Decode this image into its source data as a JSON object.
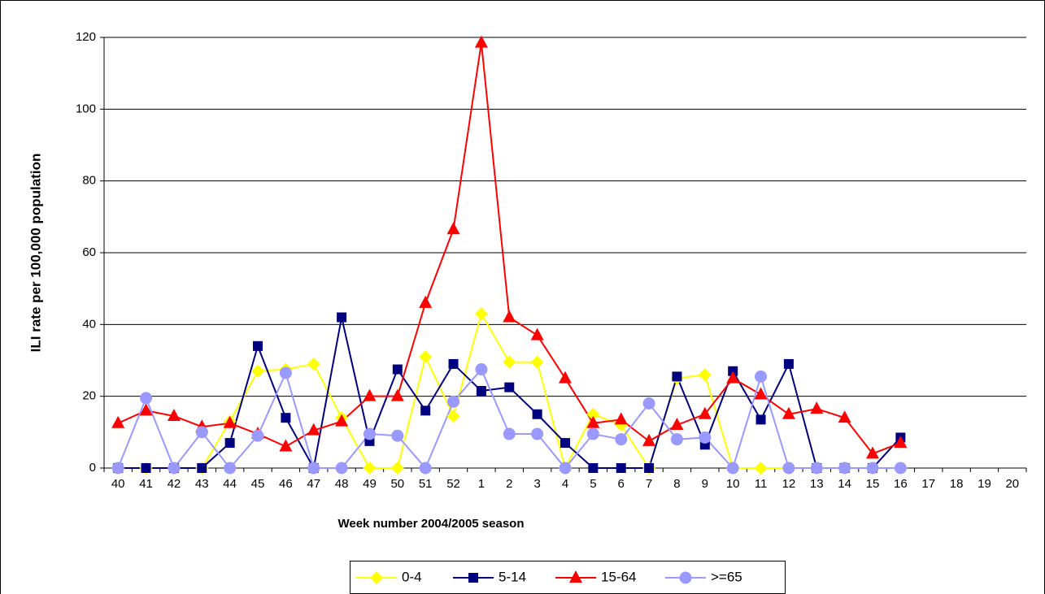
{
  "chart_data": {
    "type": "line",
    "x_label": "Week number 2004/2005 season",
    "y_label": "ILI rate per 100,000 population",
    "categories": [
      "40",
      "41",
      "42",
      "43",
      "44",
      "45",
      "46",
      "47",
      "48",
      "49",
      "50",
      "51",
      "52",
      "1",
      "2",
      "3",
      "4",
      "5",
      "6",
      "7",
      "8",
      "9",
      "10",
      "11",
      "12",
      "13",
      "14",
      "15",
      "16",
      "17",
      "18",
      "19",
      "20"
    ],
    "ylim": [
      0,
      120
    ],
    "yticks": [
      0,
      20,
      40,
      60,
      80,
      100,
      120
    ],
    "grid": true,
    "series": [
      {
        "name": "0-4",
        "color": "#ffff00",
        "marker": "diamond",
        "values": [
          0,
          0,
          0,
          0,
          13,
          27,
          27.5,
          29,
          14,
          0,
          0,
          31,
          14.5,
          43,
          29.5,
          29.5,
          0,
          15,
          12,
          0,
          25,
          26,
          0,
          0,
          0,
          0,
          0,
          0,
          0,
          null,
          null,
          null,
          null
        ]
      },
      {
        "name": "5-14",
        "color": "#000080",
        "marker": "square",
        "values": [
          0,
          0,
          0,
          0,
          7,
          34,
          14,
          0,
          42,
          7.5,
          27.5,
          16,
          29,
          21.5,
          22.5,
          15,
          7,
          0,
          0,
          0,
          25.5,
          6.5,
          27,
          13.5,
          29,
          0,
          0,
          0,
          8.5,
          null,
          null,
          null,
          null
        ]
      },
      {
        "name": "15-64",
        "color": "#ff0000",
        "marker": "triangle",
        "values": [
          12.5,
          16,
          14.5,
          11.5,
          12.5,
          9.5,
          6,
          10.5,
          13,
          20,
          20,
          46,
          66.5,
          118.5,
          42,
          37,
          25,
          12.5,
          13.5,
          7.5,
          12,
          15,
          25,
          20.5,
          15,
          16.5,
          14,
          4,
          7,
          null,
          null,
          null,
          null
        ]
      },
      {
        "name": ">=65",
        "color": "#9999ff",
        "marker": "circle",
        "values": [
          0,
          19.5,
          0,
          10,
          0,
          9,
          26.5,
          0,
          0,
          9.5,
          9,
          0,
          18.5,
          27.5,
          9.5,
          9.5,
          0,
          9.5,
          8,
          18,
          8,
          8.5,
          0,
          25.5,
          0,
          0,
          0,
          0,
          0,
          null,
          null,
          null,
          null
        ]
      }
    ]
  }
}
